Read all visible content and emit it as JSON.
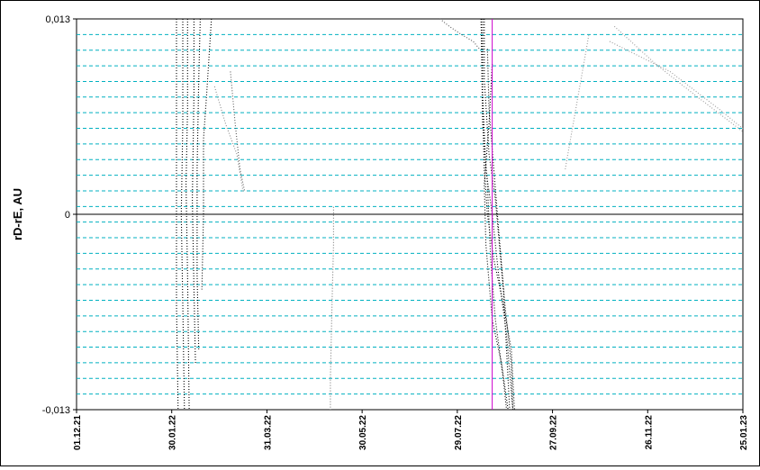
{
  "chart_data": {
    "type": "scatter",
    "title": "",
    "xlabel": "",
    "ylabel": "rD-rE, AU",
    "ylim": [
      -0.013,
      0.013
    ],
    "xlim": [
      "2021-12-01",
      "2023-01-25"
    ],
    "y_tick_labels": [
      "0,013",
      "0",
      "-0,013"
    ],
    "y_ticks": [
      0.013,
      0,
      -0.013
    ],
    "x_tick_labels": [
      "01.12.21",
      "30.01.22",
      "31.03.22",
      "30.05.22",
      "29.07.22",
      "27.09.22",
      "26.11.22",
      "25.01.23"
    ],
    "x_ticks": [
      "2021-12-01",
      "2022-01-30",
      "2022-03-31",
      "2022-05-30",
      "2022-07-29",
      "2022-09-27",
      "2022-11-26",
      "2023-01-25"
    ],
    "horizontal_gridlines": 25,
    "grid": true,
    "legend": "none",
    "zero_line": 0,
    "vertical_marker_date": "2022-08-20",
    "colors": {
      "grid": "#00b0c0",
      "marker_line": "#cc00cc",
      "series_dark": "#000000",
      "series_mid": "#555555",
      "series_light": "#999999"
    },
    "series": [
      {
        "color": "#000000",
        "points": [
          [
            "2022-02-02",
            0.013
          ],
          [
            "2022-02-02",
            0.006
          ],
          [
            "2022-02-02",
            0.0
          ],
          [
            "2022-02-02",
            -0.006
          ],
          [
            "2022-02-03",
            -0.013
          ]
        ]
      },
      {
        "color": "#000000",
        "points": [
          [
            "2022-02-06",
            0.013
          ],
          [
            "2022-02-06",
            0.006
          ],
          [
            "2022-02-05",
            0.0
          ],
          [
            "2022-02-06",
            -0.006
          ],
          [
            "2022-02-07",
            -0.013
          ]
        ]
      },
      {
        "color": "#000000",
        "points": [
          [
            "2022-02-09",
            0.013
          ],
          [
            "2022-02-09",
            0.007
          ],
          [
            "2022-02-08",
            0.002
          ],
          [
            "2022-02-09",
            -0.004
          ],
          [
            "2022-02-10",
            -0.013
          ]
        ]
      },
      {
        "color": "#000000",
        "points": [
          [
            "2022-02-13",
            0.013
          ],
          [
            "2022-02-13",
            0.008
          ],
          [
            "2022-02-12",
            0.001
          ],
          [
            "2022-02-13",
            -0.005
          ],
          [
            "2022-02-14",
            -0.01
          ]
        ]
      },
      {
        "color": "#000000",
        "points": [
          [
            "2022-02-17",
            0.013
          ],
          [
            "2022-02-16",
            0.009
          ],
          [
            "2022-02-15",
            0.003
          ],
          [
            "2022-02-15",
            -0.004
          ],
          [
            "2022-02-16",
            -0.009
          ]
        ]
      },
      {
        "color": "#000000",
        "points": [
          [
            "2022-02-24",
            0.013
          ],
          [
            "2022-02-21",
            0.008
          ],
          [
            "2022-02-19",
            0.005
          ],
          [
            "2022-02-19",
            0.0
          ],
          [
            "2022-02-18",
            -0.005
          ]
        ]
      },
      {
        "color": "#888888",
        "points": [
          [
            "2022-02-26",
            0.0085
          ],
          [
            "2022-03-05",
            0.006
          ],
          [
            "2022-03-12",
            0.004
          ],
          [
            "2022-03-16",
            0.0015
          ]
        ]
      },
      {
        "color": "#555555",
        "points": [
          [
            "2022-03-08",
            0.0095
          ],
          [
            "2022-03-11",
            0.006
          ],
          [
            "2022-03-14",
            0.003
          ],
          [
            "2022-03-17",
            0.0015
          ]
        ]
      },
      {
        "color": "#000000",
        "points": [
          [
            "2022-08-13",
            0.013
          ],
          [
            "2022-08-14",
            0.007
          ],
          [
            "2022-08-15",
            0.003
          ],
          [
            "2022-08-17",
            0.0
          ],
          [
            "2022-08-21",
            -0.003
          ],
          [
            "2022-08-27",
            -0.006
          ],
          [
            "2022-09-01",
            -0.009
          ],
          [
            "2022-09-03",
            -0.013
          ]
        ]
      },
      {
        "color": "#000000",
        "points": [
          [
            "2022-08-14",
            0.013
          ],
          [
            "2022-08-14",
            0.008
          ],
          [
            "2022-08-16",
            0.003
          ],
          [
            "2022-08-20",
            0.0
          ],
          [
            "2022-08-24",
            -0.004
          ],
          [
            "2022-08-29",
            -0.008
          ],
          [
            "2022-09-02",
            -0.013
          ]
        ]
      },
      {
        "color": "#000000",
        "points": [
          [
            "2022-08-15",
            0.013
          ],
          [
            "2022-08-15",
            0.009
          ],
          [
            "2022-08-18",
            0.004
          ],
          [
            "2022-08-22",
            0.001
          ],
          [
            "2022-08-27",
            -0.005
          ],
          [
            "2022-08-31",
            -0.013
          ]
        ]
      },
      {
        "color": "#000000",
        "points": [
          [
            "2022-08-17",
            0.011
          ],
          [
            "2022-08-18",
            0.007
          ],
          [
            "2022-08-21",
            0.003
          ],
          [
            "2022-08-24",
            -0.001
          ],
          [
            "2022-08-28",
            -0.006
          ],
          [
            "2022-09-01",
            -0.01
          ],
          [
            "2022-09-02",
            -0.013
          ]
        ]
      },
      {
        "color": "#000000",
        "points": [
          [
            "2022-08-20",
            0.01
          ],
          [
            "2022-08-18",
            0.006
          ],
          [
            "2022-08-15",
            0.002
          ],
          [
            "2022-08-16",
            -0.002
          ],
          [
            "2022-08-20",
            -0.007
          ],
          [
            "2022-08-26",
            -0.01
          ],
          [
            "2022-08-30",
            -0.013
          ]
        ]
      },
      {
        "color": "#000000",
        "points": [
          [
            "2022-08-13",
            0.013
          ],
          [
            "2022-08-14",
            0.006
          ],
          [
            "2022-08-17",
            0.002
          ],
          [
            "2022-08-19",
            -0.003
          ],
          [
            "2022-08-22",
            -0.007
          ],
          [
            "2022-08-27",
            -0.011
          ],
          [
            "2022-08-29",
            -0.013
          ]
        ]
      },
      {
        "color": "#999999",
        "points": [
          [
            "2022-10-05",
            0.003
          ],
          [
            "2022-10-10",
            0.006
          ],
          [
            "2022-10-15",
            0.009
          ],
          [
            "2022-10-20",
            0.012
          ]
        ]
      },
      {
        "color": "#999999",
        "points": [
          [
            "2022-11-05",
            0.0125
          ],
          [
            "2022-12-01",
            0.01
          ],
          [
            "2022-12-25",
            0.008
          ],
          [
            "2023-01-25",
            0.0055
          ]
        ]
      },
      {
        "color": "#999999",
        "points": [
          [
            "2022-11-02",
            0.0115
          ],
          [
            "2022-12-10",
            0.0095
          ],
          [
            "2023-01-10",
            0.007
          ],
          [
            "2023-01-25",
            0.0057
          ]
        ]
      },
      {
        "color": "#555555",
        "points": [
          [
            "2022-07-18",
            0.013
          ],
          [
            "2022-07-24",
            0.0125
          ],
          [
            "2022-07-31",
            0.012
          ],
          [
            "2022-08-08",
            0.0115
          ],
          [
            "2022-08-12",
            0.011
          ]
        ]
      },
      {
        "color": "#777777",
        "points": [
          [
            "2022-05-12",
            0.0005
          ],
          [
            "2022-05-12",
            -0.002
          ],
          [
            "2022-05-11",
            -0.006
          ],
          [
            "2022-05-10",
            -0.011
          ],
          [
            "2022-05-10",
            -0.013
          ]
        ]
      }
    ]
  }
}
